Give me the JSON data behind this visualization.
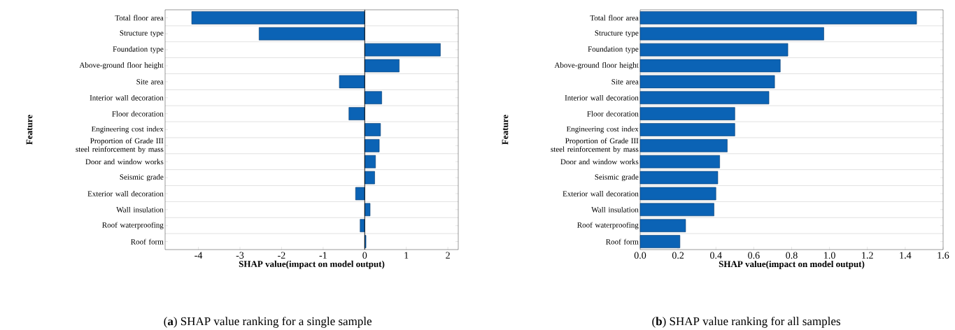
{
  "chart_data": [
    {
      "type": "bar",
      "orientation": "horizontal",
      "xlabel": "SHAP value(impact on model output)",
      "ylabel": "Feature",
      "categories": [
        "Total floor area",
        "Structure type",
        "Foundation type",
        "Above-ground floor height",
        "Site area",
        "Interior wall decoration",
        "Floor decoration",
        "Engineering cost index",
        "Proportion of Grade III steel reinforcement by mass",
        "Door and window works",
        "Seismic grade",
        "Exterior wall decoration",
        "Wall insulation",
        "Roof waterproofing",
        "Roof form"
      ],
      "values": [
        -4.16,
        -2.54,
        1.82,
        0.83,
        -0.61,
        0.41,
        -0.38,
        0.38,
        0.35,
        0.26,
        0.24,
        -0.22,
        0.13,
        -0.11,
        0.03
      ],
      "color": "#0b63b5",
      "xlim": [
        -4.8,
        2.25
      ],
      "xticks": [
        -4,
        -3,
        -2,
        -1,
        0,
        1,
        2
      ],
      "grid": "y",
      "ref_lines": [
        {
          "axis": "x",
          "value": 0,
          "color": "#000000"
        }
      ],
      "annotations": [
        "(**a**) SHAP value ranking for a single sample"
      ]
    },
    {
      "type": "bar",
      "orientation": "horizontal",
      "xlabel": "SHAP value(impact on model output)",
      "ylabel": "Feature",
      "categories": [
        "Total floor area",
        "Structure type",
        "Foundation type",
        "Above-ground floor height",
        "Site area",
        "Interior wall decoration",
        "Floor decoration",
        "Engineering cost index",
        "Proportion of Grade III steel reinforcement by mass",
        "Door and window works",
        "Seismic grade",
        "Exterior wall decoration",
        "Wall insulation",
        "Roof waterproofing",
        "Roof form"
      ],
      "values": [
        1.46,
        0.97,
        0.78,
        0.74,
        0.71,
        0.68,
        0.5,
        0.5,
        0.46,
        0.42,
        0.41,
        0.4,
        0.39,
        0.24,
        0.21
      ],
      "color": "#0b63b5",
      "xlim": [
        0,
        1.6
      ],
      "xticks": [
        {
          "value": 0,
          "label": "0.0"
        },
        {
          "value": 0.2,
          "label": "0.2"
        },
        {
          "value": 0.4,
          "label": "0.4"
        },
        {
          "value": 0.6,
          "label": "0.6"
        },
        {
          "value": 0.8,
          "label": "0.8"
        },
        {
          "value": 1.0,
          "label": "1.0"
        },
        {
          "value": 1.2,
          "label": "1.2"
        },
        {
          "value": 1.4,
          "label": "1.4"
        },
        {
          "value": 1.6,
          "label": "1.6"
        }
      ],
      "grid": "y",
      "annotations": [
        "(**b**) SHAP value ranking for all samples"
      ]
    }
  ]
}
